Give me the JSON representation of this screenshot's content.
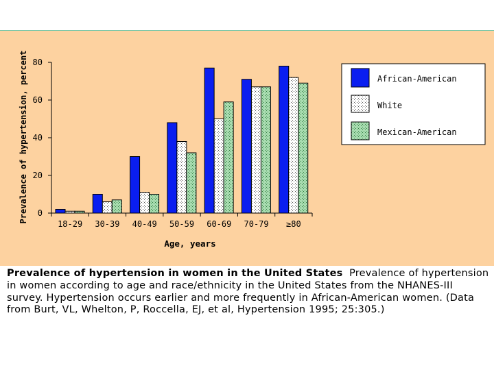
{
  "chart_data": {
    "type": "bar",
    "title": "Prevalence of hypertension in women in the United States",
    "xlabel": "Age, years",
    "ylabel": "Prevalence of hypertension, percent",
    "ylim": [
      0,
      80
    ],
    "yticks": [
      0,
      20,
      40,
      60,
      80
    ],
    "categories": [
      "18-29",
      "30-39",
      "40-49",
      "50-59",
      "60-69",
      "70-79",
      "≥80"
    ],
    "series": [
      {
        "name": "African-American",
        "color": "#0a1ef0",
        "pattern": "solid",
        "values": [
          2,
          10,
          30,
          48,
          77,
          71,
          78
        ]
      },
      {
        "name": "White",
        "color": "#ffffff",
        "pattern": "dots",
        "values": [
          1,
          6,
          11,
          38,
          50,
          67,
          72
        ]
      },
      {
        "name": "Mexican-American",
        "color": "#9bd3a8",
        "pattern": "green-dots",
        "values": [
          1,
          7,
          10,
          32,
          59,
          67,
          69
        ]
      }
    ],
    "legend_position": "top-right"
  },
  "caption": {
    "title": "Prevalence of hypertension in women in the United States",
    "body": "Prevalence of hypertension in women according to age and race/ethnicity in the United States from the NHANES-III survey. Hypertension occurs earlier and more frequently in African-American women. (Data from Burt, VL, Whelton, P, Roccella, EJ, et al, Hypertension 1995; 25:305.)"
  }
}
